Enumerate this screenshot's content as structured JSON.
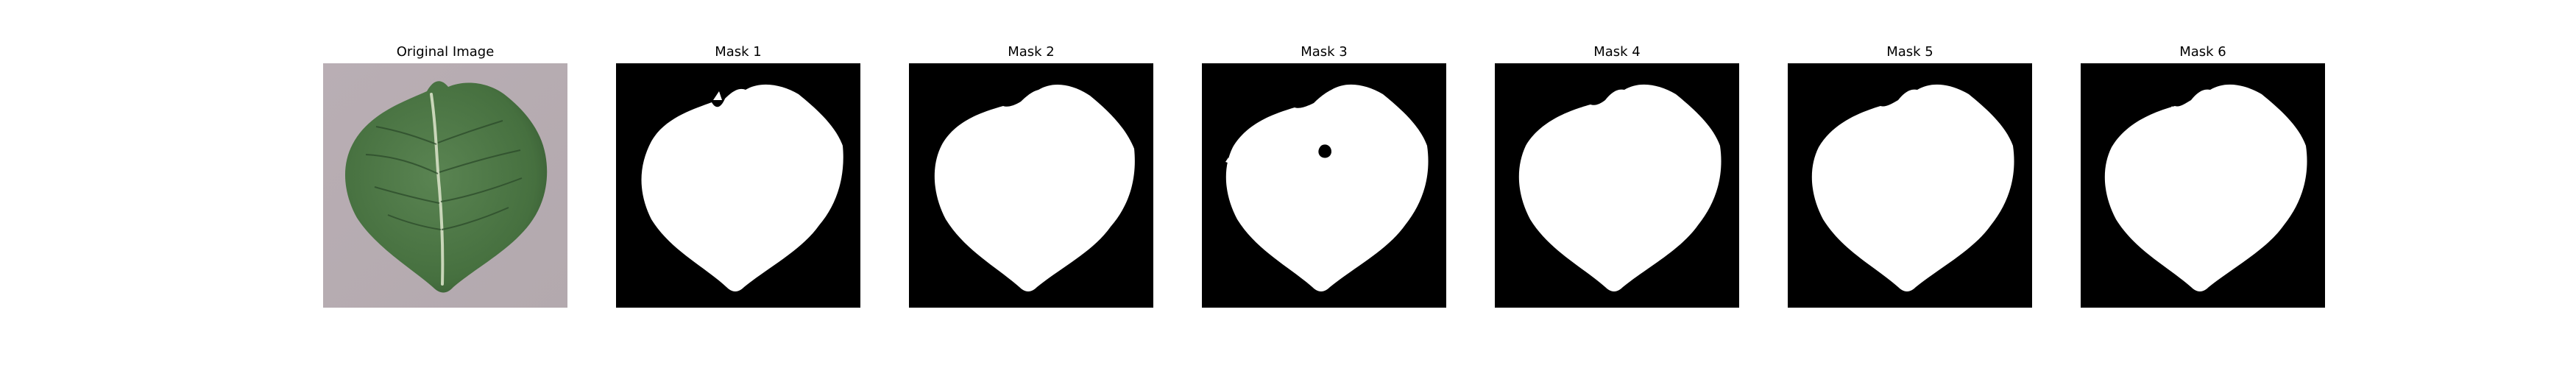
{
  "figure": {
    "panels": [
      {
        "title": "Original Image",
        "kind": "photo"
      },
      {
        "title": "Mask 1",
        "kind": "mask"
      },
      {
        "title": "Mask 2",
        "kind": "mask"
      },
      {
        "title": "Mask 3",
        "kind": "mask"
      },
      {
        "title": "Mask 4",
        "kind": "mask"
      },
      {
        "title": "Mask 5",
        "kind": "mask"
      },
      {
        "title": "Mask 6",
        "kind": "mask"
      }
    ]
  },
  "colors": {
    "leaf_green": "#4f7a49",
    "leaf_dark": "#2f4f2d",
    "vein": "#c9d6b9",
    "background_photo": "#b8aeb3",
    "mask_background": "#000000",
    "mask_foreground": "#ffffff"
  }
}
